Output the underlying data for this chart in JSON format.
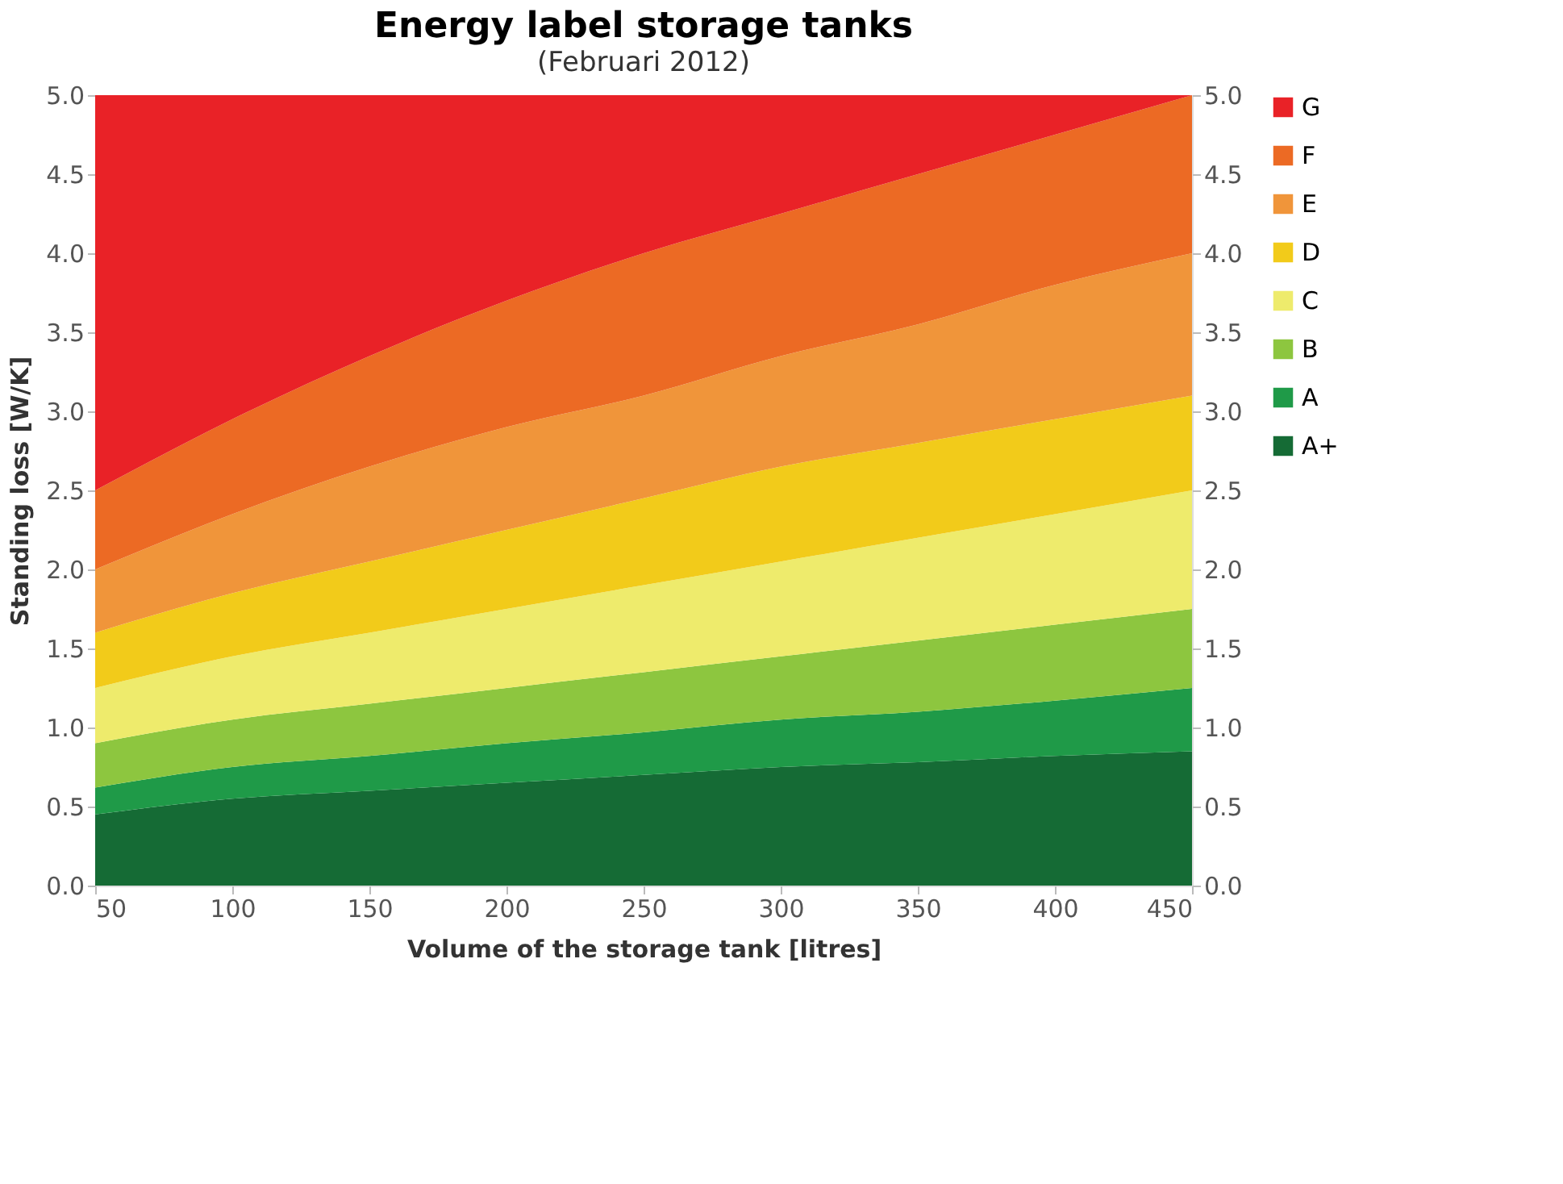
{
  "chart_data": {
    "type": "area",
    "stacked": true,
    "title": "Energy label storage tanks",
    "subtitle": "(Februari 2012)",
    "xlabel": "Volume of the storage tank [litres]",
    "ylabel": "Standing loss [W/K]",
    "x": [
      50,
      100,
      150,
      200,
      250,
      300,
      350,
      400,
      450
    ],
    "series": [
      {
        "name": "A+",
        "color": "#156b35",
        "values": [
          0.45,
          0.55,
          0.6,
          0.65,
          0.7,
          0.75,
          0.78,
          0.82,
          0.85
        ]
      },
      {
        "name": "A",
        "color": "#1f9a48",
        "values": [
          0.17,
          0.2,
          0.22,
          0.25,
          0.27,
          0.3,
          0.32,
          0.35,
          0.4
        ]
      },
      {
        "name": "B",
        "color": "#8dc63f",
        "values": [
          0.28,
          0.3,
          0.33,
          0.35,
          0.38,
          0.4,
          0.45,
          0.48,
          0.5
        ]
      },
      {
        "name": "C",
        "color": "#eeeb6c",
        "values": [
          0.35,
          0.4,
          0.45,
          0.5,
          0.55,
          0.6,
          0.65,
          0.7,
          0.75
        ]
      },
      {
        "name": "D",
        "color": "#f2cb1a",
        "values": [
          0.35,
          0.4,
          0.45,
          0.5,
          0.55,
          0.6,
          0.6,
          0.6,
          0.6
        ]
      },
      {
        "name": "E",
        "color": "#f0953a",
        "values": [
          0.4,
          0.5,
          0.6,
          0.65,
          0.65,
          0.7,
          0.75,
          0.85,
          0.9
        ]
      },
      {
        "name": "F",
        "color": "#ec6a24",
        "values": [
          0.5,
          0.6,
          0.7,
          0.8,
          0.9,
          0.9,
          0.95,
          0.95,
          1.0
        ]
      },
      {
        "name": "G",
        "color": "#e92227",
        "values": [
          2.5,
          2.05,
          1.65,
          1.3,
          1.0,
          0.75,
          0.5,
          0.25,
          0.0
        ]
      }
    ],
    "xlim": [
      50,
      450
    ],
    "xticks": [
      50,
      100,
      150,
      200,
      250,
      300,
      350,
      400,
      450
    ],
    "ylim": [
      0,
      5
    ],
    "yticks": [
      {
        "value": 0,
        "label": "0.0"
      },
      0.5,
      {
        "value": 1,
        "label": "1.0"
      },
      1.5,
      {
        "value": 2,
        "label": "2.0"
      },
      2.5,
      {
        "value": 3,
        "label": "3.0"
      },
      3.5,
      {
        "value": 4,
        "label": "4.0"
      },
      4.5,
      {
        "value": 5,
        "label": "5.0"
      }
    ],
    "y2lim": [
      0,
      5
    ],
    "y2ticks": [
      {
        "value": 0,
        "label": "0.0"
      },
      0.5,
      {
        "value": 1,
        "label": "1.0"
      },
      1.5,
      {
        "value": 2,
        "label": "2.0"
      },
      2.5,
      {
        "value": 3,
        "label": "3.0"
      },
      3.5,
      {
        "value": 4,
        "label": "4.0"
      },
      4.5,
      {
        "value": 5,
        "label": "5.0"
      }
    ],
    "grid": false,
    "legend": "right"
  }
}
